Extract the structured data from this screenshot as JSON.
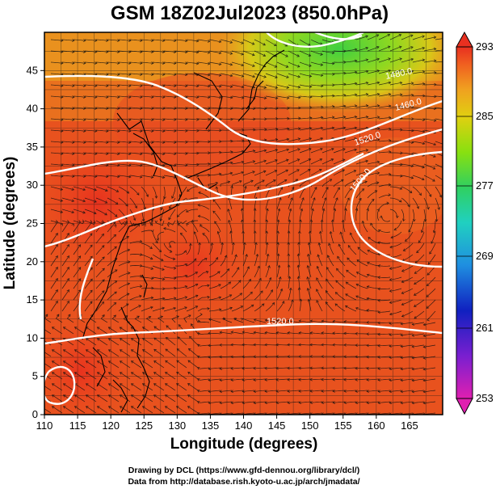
{
  "title": "GSM 18Z02Jul2023 (850.0hPa)",
  "x_axis": {
    "label": "Longitude (degrees)",
    "ticks": [
      "110",
      "115",
      "120",
      "125",
      "130",
      "135",
      "140",
      "145",
      "150",
      "155",
      "160",
      "165"
    ],
    "range": [
      110,
      170
    ]
  },
  "y_axis": {
    "label": "Latitude  (degrees)",
    "ticks": [
      "0",
      "5",
      "10",
      "15",
      "20",
      "25",
      "30",
      "35",
      "40",
      "45"
    ],
    "range": [
      0,
      50
    ]
  },
  "colorbar": {
    "labels": [
      "293",
      "285",
      "277",
      "269",
      "261",
      "253"
    ],
    "range": [
      253,
      293
    ],
    "colors": [
      "#e01fb0",
      "#7a1fd0",
      "#1020c0",
      "#1f8fe0",
      "#20d0c0",
      "#30d060",
      "#88e010",
      "#e0d010",
      "#f0a020",
      "#f06020",
      "#e83020"
    ]
  },
  "contour_labels": [
    "1480.0",
    "1460.0",
    "1520.0",
    "1500.0",
    "1520.0"
  ],
  "credits": {
    "line1": "Drawing by DCL (https://www.gfd-dennou.org/library/dcl/)",
    "line2": "Data from http://database.rish.kyoto-u.ac.jp/arch/jmadata/"
  }
}
